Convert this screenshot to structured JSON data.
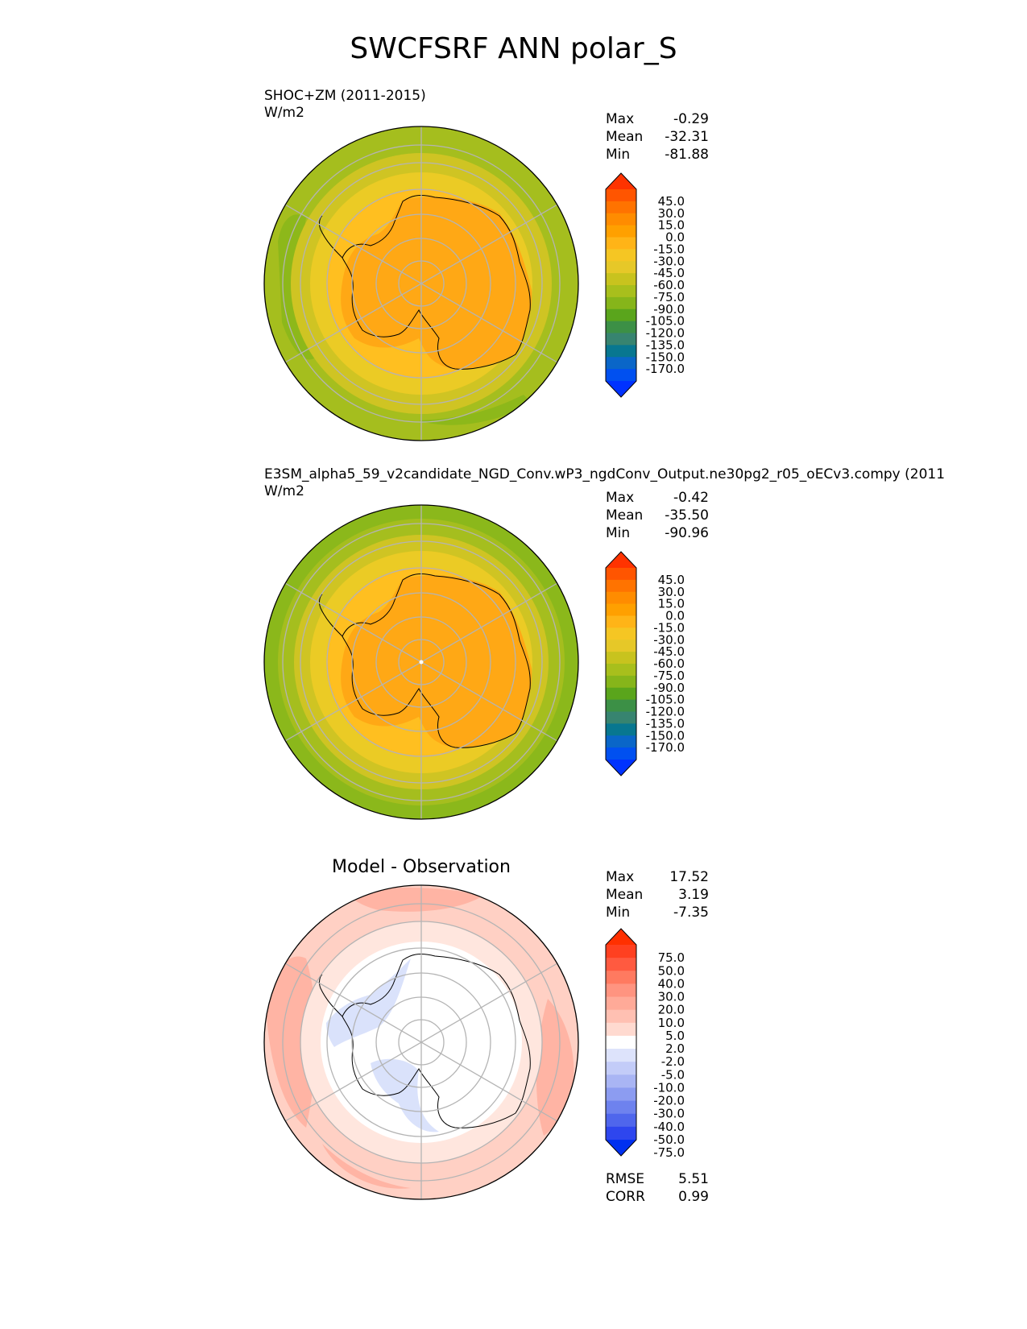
{
  "title": "SWCFSRF ANN polar_S",
  "panels": [
    {
      "title_line1": "SHOC+ZM (2011-2015)",
      "title_line2": "W/m2",
      "stats": [
        {
          "label": "Max",
          "value": "-0.29"
        },
        {
          "label": "Mean",
          "value": "-32.31"
        },
        {
          "label": "Min",
          "value": "-81.88"
        }
      ],
      "colorbar": {
        "labels": [
          "45.0",
          "30.0",
          "15.0",
          "0.0",
          "-15.0",
          "-30.0",
          "-45.0",
          "-60.0",
          "-75.0",
          "-90.0",
          "-105.0",
          "-120.0",
          "-135.0",
          "-150.0",
          "-170.0"
        ],
        "colors": [
          "#ff3300",
          "#ff5500",
          "#ff7300",
          "#ff8c00",
          "#ffa000",
          "#ffb417",
          "#f5c623",
          "#e6c828",
          "#c8c31e",
          "#a8bf1c",
          "#86b51a",
          "#5aa51c",
          "#3c9046",
          "#378470",
          "#087790",
          "#0a66c8",
          "#0050f0",
          "#0032ff"
        ]
      }
    },
    {
      "title_line1": "E3SM_alpha5_59_v2candidate_NGD_Conv.wP3_ngdConv_Output.ne30pg2_r05_oECv3.compy (2011",
      "title_line2": "W/m2",
      "stats": [
        {
          "label": "Max",
          "value": "-0.42"
        },
        {
          "label": "Mean",
          "value": "-35.50"
        },
        {
          "label": "Min",
          "value": "-90.96"
        }
      ],
      "colorbar": {
        "labels": [
          "45.0",
          "30.0",
          "15.0",
          "0.0",
          "-15.0",
          "-30.0",
          "-45.0",
          "-60.0",
          "-75.0",
          "-90.0",
          "-105.0",
          "-120.0",
          "-135.0",
          "-150.0",
          "-170.0"
        ],
        "colors": [
          "#ff3300",
          "#ff5500",
          "#ff7300",
          "#ff8c00",
          "#ffa000",
          "#ffb417",
          "#f5c623",
          "#e6c828",
          "#c8c31e",
          "#a8bf1c",
          "#86b51a",
          "#5aa51c",
          "#3c9046",
          "#378470",
          "#087790",
          "#0a66c8",
          "#0050f0",
          "#0032ff"
        ]
      }
    },
    {
      "title_line1": "Model - Observation",
      "stats": [
        {
          "label": "Max",
          "value": "17.52"
        },
        {
          "label": "Mean",
          "value": "3.19"
        },
        {
          "label": "Min",
          "value": "-7.35"
        }
      ],
      "extra_stats": [
        {
          "label": "RMSE",
          "value": "5.51"
        },
        {
          "label": "CORR",
          "value": "0.99"
        }
      ],
      "colorbar": {
        "labels": [
          "75.0",
          "50.0",
          "40.0",
          "30.0",
          "20.0",
          "10.0",
          "5.0",
          "2.0",
          "-2.0",
          "-5.0",
          "-10.0",
          "-20.0",
          "-30.0",
          "-40.0",
          "-50.0",
          "-75.0"
        ],
        "colors": [
          "#ff3000",
          "#ff4020",
          "#ff5a40",
          "#ff7a60",
          "#ff9480",
          "#ffaa98",
          "#ffc0b2",
          "#ffdad0",
          "#ffffff",
          "#dde3fb",
          "#c3ccf8",
          "#a9b5f4",
          "#8c9cf1",
          "#6e82ee",
          "#4f66ec",
          "#2e46ee",
          "#0030f0"
        ]
      }
    }
  ],
  "chart_data": [
    {
      "type": "heatmap",
      "title": "SHOC+ZM (2011-2015)",
      "units": "W/m2",
      "projection": "south polar stereographic",
      "max": -0.29,
      "mean": -32.31,
      "min": -81.88,
      "levels": [
        -170,
        -150,
        -135,
        -120,
        -105,
        -90,
        -75,
        -60,
        -45,
        -30,
        -15,
        0,
        15,
        30,
        45
      ]
    },
    {
      "type": "heatmap",
      "title": "E3SM_alpha5_59_v2candidate_NGD_Conv.wP3_ngdConv_Output.ne30pg2_r05_oECv3.compy (2011",
      "units": "W/m2",
      "projection": "south polar stereographic",
      "max": -0.42,
      "mean": -35.5,
      "min": -90.96,
      "levels": [
        -170,
        -150,
        -135,
        -120,
        -105,
        -90,
        -75,
        -60,
        -45,
        -30,
        -15,
        0,
        15,
        30,
        45
      ]
    },
    {
      "type": "heatmap",
      "title": "Model - Observation",
      "projection": "south polar stereographic",
      "max": 17.52,
      "mean": 3.19,
      "min": -7.35,
      "rmse": 5.51,
      "corr": 0.99,
      "levels": [
        -75,
        -50,
        -40,
        -30,
        -20,
        -10,
        -5,
        -2,
        2,
        5,
        10,
        20,
        30,
        40,
        50,
        75
      ]
    }
  ]
}
